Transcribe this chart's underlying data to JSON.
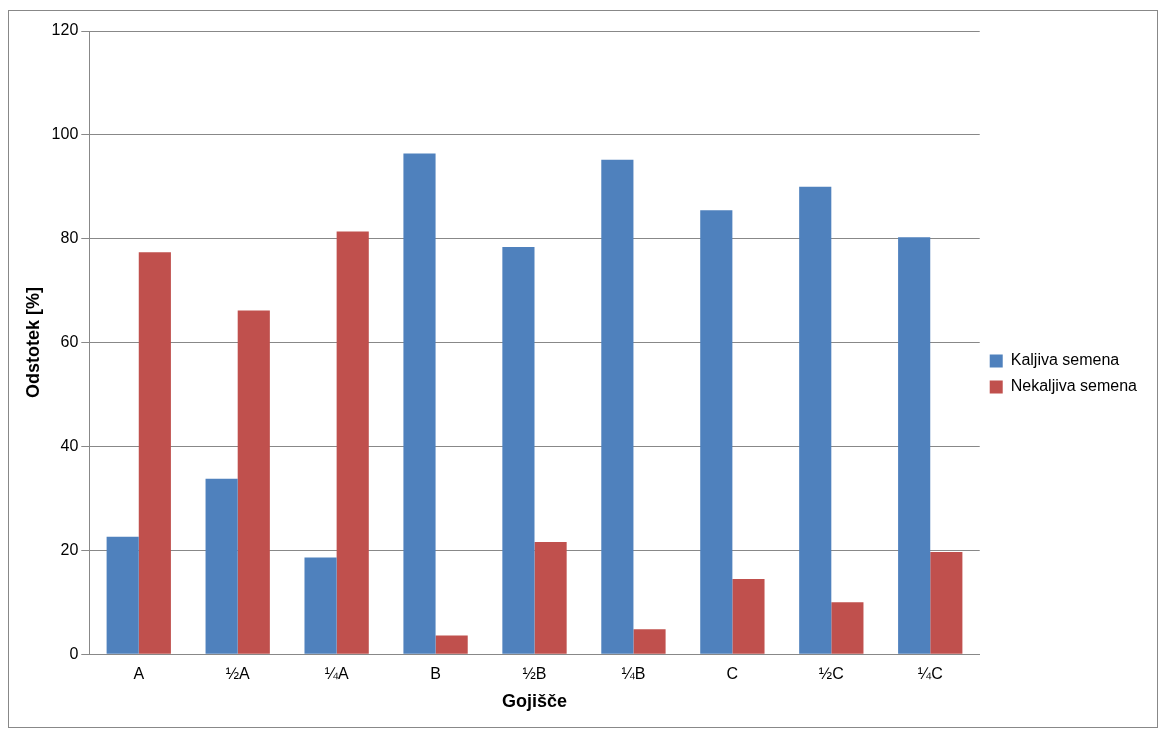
{
  "chart_data": {
    "type": "bar",
    "xlabel": "Gojišče",
    "ylabel": "Odstotek [%]",
    "categories": [
      "A",
      "½A",
      "¼A",
      "B",
      "½B",
      "¼B",
      "C",
      "½C",
      "¼C"
    ],
    "series": [
      {
        "name": "Kaljiva semena",
        "color": "#4f81bd",
        "values": [
          22.6,
          33.8,
          18.6,
          96.4,
          78.4,
          95.2,
          85.5,
          90.0,
          80.3
        ]
      },
      {
        "name": "Nekaljiva semena",
        "color": "#c0504d",
        "values": [
          77.4,
          66.2,
          81.4,
          3.6,
          21.6,
          4.8,
          14.5,
          10.0,
          19.7
        ]
      }
    ],
    "ylim": [
      0,
      120
    ],
    "yticks": [
      0,
      20,
      40,
      60,
      80,
      100,
      120
    ],
    "grid": "y",
    "legend": "right"
  }
}
